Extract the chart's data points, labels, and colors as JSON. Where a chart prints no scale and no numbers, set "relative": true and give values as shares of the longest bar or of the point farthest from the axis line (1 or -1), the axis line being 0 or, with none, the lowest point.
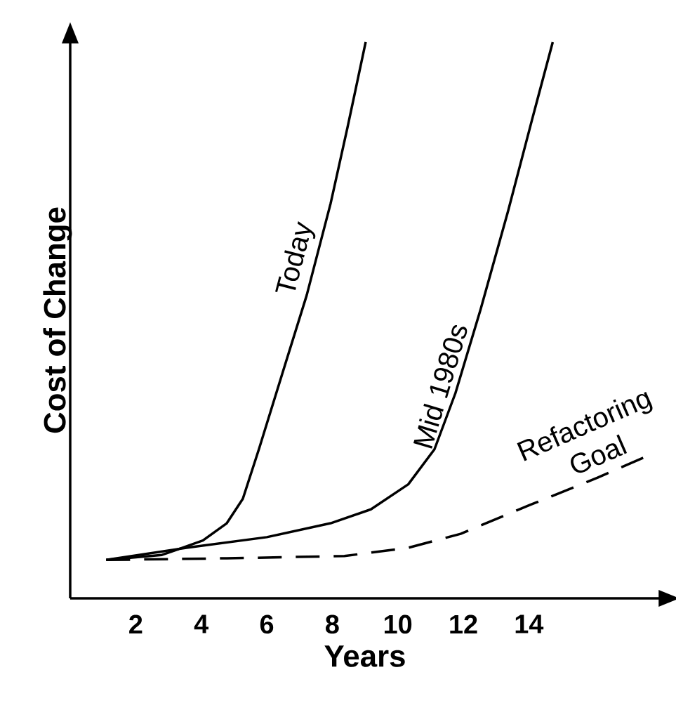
{
  "chart_data": {
    "type": "line",
    "relative": true,
    "xlabel": "Years",
    "ylabel": "Cost of Change",
    "xlim": [
      0,
      18
    ],
    "xticks": [
      2,
      4,
      6,
      8,
      10,
      12,
      14
    ],
    "marker": "none",
    "series": [
      {
        "name": "Today",
        "color": "#000000",
        "line_style": "solid",
        "x": [
          1.1,
          2.8,
          4.05,
          4.78,
          5.27,
          5.76,
          6.49,
          7.22,
          7.95,
          8.47,
          9.02
        ],
        "values": [
          0.069,
          0.078,
          0.104,
          0.135,
          0.179,
          0.268,
          0.407,
          0.545,
          0.71,
          0.848,
          1.0
        ]
      },
      {
        "name": "Mid 1980s",
        "color": "#000000",
        "line_style": "solid",
        "x": [
          1.1,
          3.55,
          6,
          7.95,
          9.18,
          10.32,
          11.12,
          11.76,
          12.53,
          13.37,
          14.1,
          14.73
        ],
        "values": [
          0.069,
          0.091,
          0.11,
          0.135,
          0.16,
          0.205,
          0.268,
          0.369,
          0.52,
          0.697,
          0.861,
          1.0
        ]
      },
      {
        "name": "Refactoring Goal",
        "color": "#000000",
        "line_style": "dashed",
        "x": [
          1.1,
          4.78,
          8.37,
          10.32,
          11.92,
          14,
          16.1,
          17.5
        ],
        "values": [
          0.069,
          0.072,
          0.076,
          0.091,
          0.116,
          0.167,
          0.217,
          0.253
        ]
      }
    ]
  }
}
